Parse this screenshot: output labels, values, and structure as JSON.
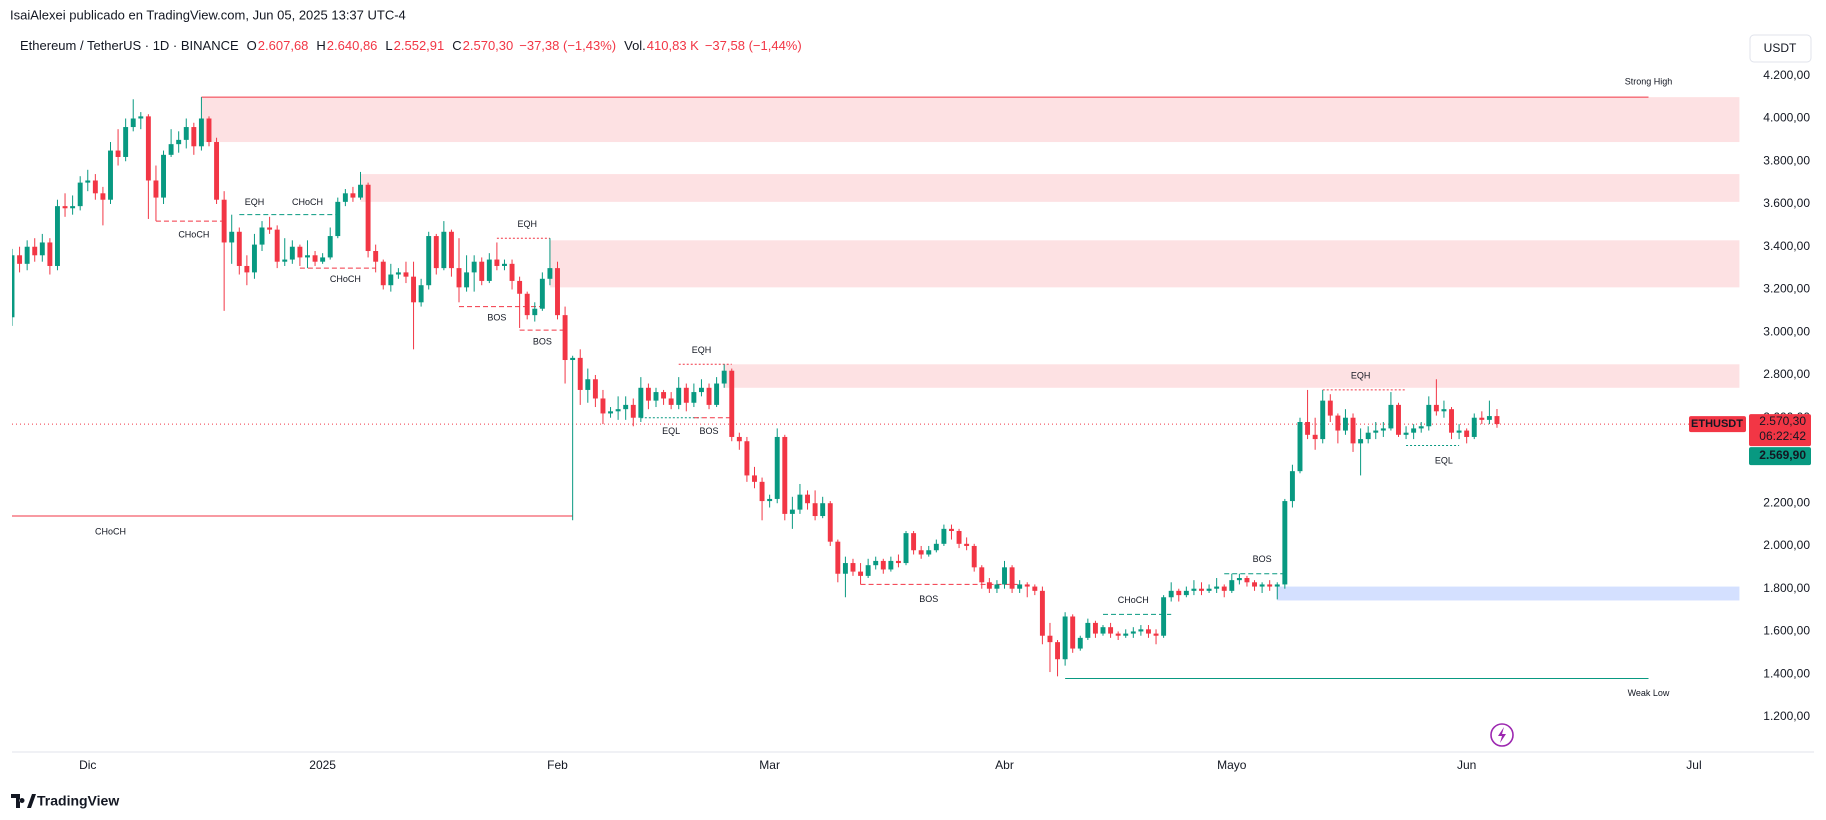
{
  "chart_data": {
    "type": "candlestick",
    "header": {
      "author_line": "IsaiAlexei publicado en TradingView.com, Jun 05, 2025 13:37 UTC-4",
      "symbol": "Ethereum / TetherUS · 1D · BINANCE",
      "ohlc": [
        {
          "key": "O",
          "value": "2.607,68"
        },
        {
          "key": "H",
          "value": "2.640,86"
        },
        {
          "key": "L",
          "value": "2.552,91"
        },
        {
          "key": "C",
          "value": "2.570,30"
        }
      ],
      "change": "−37,38 (−1,43%)",
      "volume_key": "Vol.",
      "volume": "410,83 K",
      "volume_change": "−37,58 (−1,44%)",
      "currency": "USDT"
    },
    "up_color": "#089981",
    "down_color": "#f23645",
    "grid": false,
    "xlim": [
      0,
      229
    ],
    "xticks": [
      {
        "value": 10,
        "label": "Dic"
      },
      {
        "value": 41,
        "label": "2025"
      },
      {
        "value": 72,
        "label": "Feb"
      },
      {
        "value": 100,
        "label": "Mar"
      },
      {
        "value": 131,
        "label": "Abr"
      },
      {
        "value": 161,
        "label": "Mayo"
      },
      {
        "value": 192,
        "label": "Jun"
      },
      {
        "value": 222,
        "label": "Jul"
      }
    ],
    "ylim": [
      1050,
      4255
    ],
    "yticks": [
      {
        "value": 1200,
        "label": "1.200,00"
      },
      {
        "value": 1400,
        "label": "1.400,00"
      },
      {
        "value": 1600,
        "label": "1.600,00"
      },
      {
        "value": 1800,
        "label": "1.800,00"
      },
      {
        "value": 2000,
        "label": "2.000,00"
      },
      {
        "value": 2200,
        "label": "2.200,00"
      },
      {
        "value": 2400,
        "label": "2.400,00"
      },
      {
        "value": 2600,
        "label": "2.600,00"
      },
      {
        "value": 2800,
        "label": "2.800,00"
      },
      {
        "value": 3000,
        "label": "3.000,00"
      },
      {
        "value": 3200,
        "label": "3.200,00"
      },
      {
        "value": 3400,
        "label": "3.400,00"
      },
      {
        "value": 3600,
        "label": "3.600,00"
      },
      {
        "value": 3800,
        "label": "3.800,00"
      },
      {
        "value": 4000,
        "label": "4.000,00"
      },
      {
        "value": 4200,
        "label": "4.200,00"
      }
    ],
    "open": [
      3070,
      3360,
      3320,
      3400,
      3360,
      3420,
      3310,
      3590,
      3580,
      3590,
      3700,
      3710,
      3650,
      3620,
      3850,
      3820,
      3960,
      4000,
      4010,
      3710,
      3630,
      3830,
      3880,
      3900,
      3960,
      3870,
      4000,
      3890,
      3620,
      3420,
      3470,
      3310,
      3280,
      3410,
      3490,
      3480,
      3330,
      3340,
      3400,
      3350,
      3360,
      3330,
      3350,
      3450,
      3610,
      3650,
      3630,
      3690,
      3380,
      3330,
      3220,
      3270,
      3280,
      3260,
      3140,
      3220,
      3450,
      3300,
      3470,
      3300,
      3210,
      3280,
      3330,
      3240,
      3340,
      3310,
      3320,
      3240,
      3180,
      3080,
      3110,
      3250,
      3300,
      3080,
      2870,
      2880,
      2730,
      2780,
      2690,
      2620,
      2630,
      2640,
      2660,
      2600,
      2740,
      2680,
      2720,
      2690,
      2660,
      2740,
      2670,
      2720,
      2740,
      2660,
      2760,
      2820,
      2510,
      2490,
      2330,
      2300,
      2210,
      2220,
      2510,
      2150,
      2170,
      2240,
      2200,
      2140,
      2200,
      2020,
      1870,
      1920,
      1880,
      1860,
      1910,
      1930,
      1890,
      1930,
      1920,
      2060,
      1980,
      1960,
      1980,
      2010,
      2080,
      2070,
      2010,
      2000,
      1900,
      1830,
      1800,
      1820,
      1900,
      1800,
      1820,
      1810,
      1790,
      1580,
      1550,
      1470,
      1670,
      1520,
      1570,
      1640,
      1590,
      1620,
      1590,
      1580,
      1590,
      1600,
      1610,
      1590,
      1580,
      1760,
      1790,
      1770,
      1790,
      1800,
      1790,
      1800,
      1810,
      1790,
      1840,
      1850,
      1830,
      1810,
      1820,
      1810,
      1820,
      2210,
      2350,
      2580,
      2520,
      2500,
      2680,
      2610,
      2540,
      2600,
      2480,
      2500,
      2530,
      2540,
      2550,
      2660,
      2520,
      2530,
      2550,
      2560,
      2660,
      2630,
      2640,
      2530,
      2540,
      2510,
      2600,
      2590,
      2607.68
    ],
    "high": [
      3390,
      3400,
      3430,
      3440,
      3460,
      3440,
      3620,
      3650,
      3640,
      3730,
      3760,
      3740,
      3680,
      3890,
      3950,
      4000,
      4090,
      4030,
      4020,
      3780,
      3850,
      3950,
      3940,
      4000,
      3980,
      4100,
      4010,
      3910,
      3660,
      3550,
      3490,
      3360,
      3460,
      3520,
      3540,
      3500,
      3440,
      3430,
      3410,
      3430,
      3380,
      3370,
      3490,
      3630,
      3670,
      3680,
      3750,
      3700,
      3410,
      3340,
      3320,
      3300,
      3330,
      3330,
      3250,
      3470,
      3460,
      3520,
      3480,
      3440,
      3360,
      3360,
      3350,
      3370,
      3420,
      3340,
      3340,
      3260,
      3190,
      3140,
      3280,
      3440,
      3330,
      3120,
      2890,
      2920,
      2830,
      2800,
      2730,
      2650,
      2700,
      2700,
      2690,
      2790,
      2760,
      2740,
      2730,
      2720,
      2790,
      2760,
      2760,
      2780,
      2760,
      2790,
      2850,
      2830,
      2530,
      2510,
      2370,
      2320,
      2240,
      2550,
      2520,
      2230,
      2290,
      2260,
      2260,
      2230,
      2210,
      2030,
      1950,
      1940,
      1920,
      1940,
      1950,
      1940,
      1950,
      1960,
      2070,
      2070,
      2000,
      2000,
      2030,
      2100,
      2100,
      2080,
      2040,
      2010,
      1910,
      1850,
      1840,
      1930,
      1910,
      1840,
      1830,
      1820,
      1810,
      1640,
      1560,
      1690,
      1680,
      1580,
      1660,
      1650,
      1630,
      1640,
      1600,
      1610,
      1620,
      1630,
      1630,
      1610,
      1770,
      1830,
      1800,
      1810,
      1840,
      1830,
      1820,
      1850,
      1820,
      1870,
      1870,
      1860,
      1840,
      1830,
      1840,
      1830,
      2220,
      2380,
      2600,
      2730,
      2600,
      2730,
      2710,
      2620,
      2640,
      2620,
      2550,
      2560,
      2580,
      2580,
      2720,
      2670,
      2560,
      2570,
      2580,
      2700,
      2780,
      2680,
      2650,
      2570,
      2550,
      2620,
      2630,
      2680,
      2640.86
    ],
    "low": [
      3030,
      3280,
      3290,
      3330,
      3330,
      3270,
      3290,
      3540,
      3550,
      3570,
      3660,
      3620,
      3500,
      3600,
      3780,
      3800,
      3940,
      3950,
      3530,
      3520,
      3600,
      3820,
      3840,
      3860,
      3830,
      3850,
      3870,
      3600,
      3100,
      3320,
      3270,
      3220,
      3250,
      3380,
      3460,
      3300,
      3310,
      3320,
      3310,
      3300,
      3310,
      3320,
      3340,
      3440,
      3590,
      3610,
      3620,
      3350,
      3280,
      3200,
      3190,
      3250,
      3230,
      2920,
      3120,
      3200,
      3270,
      3290,
      3260,
      3140,
      3190,
      3190,
      3220,
      3230,
      3290,
      3290,
      3200,
      3020,
      3060,
      3050,
      3100,
      3220,
      3060,
      2760,
      2120,
      2660,
      2670,
      2650,
      2570,
      2600,
      2590,
      2590,
      2560,
      2580,
      2640,
      2650,
      2660,
      2640,
      2640,
      2630,
      2650,
      2700,
      2640,
      2650,
      2740,
      2490,
      2450,
      2300,
      2270,
      2120,
      2180,
      2200,
      2120,
      2080,
      2150,
      2170,
      2120,
      2130,
      2000,
      1830,
      1760,
      1860,
      1820,
      1850,
      1890,
      1870,
      1880,
      1900,
      1910,
      1960,
      1940,
      1950,
      1970,
      2000,
      2030,
      1990,
      1980,
      1880,
      1800,
      1780,
      1780,
      1800,
      1780,
      1780,
      1760,
      1770,
      1540,
      1410,
      1390,
      1440,
      1500,
      1510,
      1560,
      1570,
      1580,
      1570,
      1560,
      1570,
      1570,
      1580,
      1570,
      1540,
      1570,
      1740,
      1740,
      1760,
      1770,
      1770,
      1780,
      1780,
      1760,
      1780,
      1820,
      1810,
      1790,
      1780,
      1790,
      1750,
      1800,
      2180,
      2340,
      2500,
      2450,
      2480,
      2580,
      2480,
      2520,
      2440,
      2330,
      2480,
      2500,
      2510,
      2540,
      2510,
      2500,
      2500,
      2530,
      2540,
      2610,
      2600,
      2500,
      2500,
      2480,
      2500,
      2570,
      2570,
      2552.91
    ],
    "close": [
      3360,
      3320,
      3400,
      3360,
      3420,
      3310,
      3590,
      3580,
      3590,
      3700,
      3710,
      3650,
      3620,
      3850,
      3820,
      3960,
      4000,
      4010,
      3710,
      3630,
      3830,
      3880,
      3900,
      3960,
      3870,
      4000,
      3890,
      3620,
      3420,
      3470,
      3310,
      3280,
      3410,
      3490,
      3480,
      3330,
      3340,
      3400,
      3350,
      3360,
      3330,
      3350,
      3450,
      3610,
      3650,
      3630,
      3690,
      3380,
      3330,
      3220,
      3270,
      3280,
      3260,
      3140,
      3220,
      3450,
      3300,
      3470,
      3300,
      3210,
      3280,
      3330,
      3240,
      3340,
      3310,
      3320,
      3240,
      3180,
      3080,
      3110,
      3250,
      3300,
      3080,
      2870,
      2880,
      2730,
      2780,
      2690,
      2620,
      2630,
      2640,
      2660,
      2600,
      2740,
      2680,
      2720,
      2690,
      2660,
      2740,
      2670,
      2720,
      2740,
      2660,
      2760,
      2820,
      2510,
      2490,
      2330,
      2300,
      2210,
      2220,
      2510,
      2150,
      2170,
      2240,
      2200,
      2140,
      2200,
      2020,
      1870,
      1920,
      1880,
      1860,
      1910,
      1930,
      1890,
      1930,
      1920,
      2060,
      1980,
      1960,
      1980,
      2010,
      2080,
      2070,
      2010,
      2000,
      1900,
      1830,
      1800,
      1820,
      1900,
      1800,
      1820,
      1810,
      1790,
      1580,
      1550,
      1470,
      1670,
      1520,
      1570,
      1640,
      1590,
      1620,
      1590,
      1580,
      1590,
      1600,
      1610,
      1590,
      1580,
      1760,
      1790,
      1770,
      1790,
      1800,
      1790,
      1800,
      1810,
      1790,
      1840,
      1850,
      1830,
      1810,
      1820,
      1810,
      1820,
      2210,
      2350,
      2580,
      2520,
      2500,
      2680,
      2610,
      2540,
      2600,
      2480,
      2500,
      2530,
      2540,
      2550,
      2660,
      2520,
      2530,
      2550,
      2560,
      2660,
      2630,
      2640,
      2530,
      2540,
      2510,
      2600,
      2590,
      2607.68,
      2570.3
    ],
    "zones": [
      {
        "top": 4100,
        "bottom": 3890,
        "from": 25,
        "to": 228,
        "color": "rgba(242,54,69,0.15)"
      },
      {
        "top": 3740,
        "bottom": 3610,
        "from": 46,
        "to": 228,
        "color": "rgba(242,54,69,0.15)"
      },
      {
        "top": 3430,
        "bottom": 3210,
        "from": 71,
        "to": 228,
        "color": "rgba(242,54,69,0.15)"
      },
      {
        "top": 2850,
        "bottom": 2740,
        "from": 94,
        "to": 228,
        "color": "rgba(242,54,69,0.15)"
      },
      {
        "top": 1810,
        "bottom": 1745,
        "from": 167,
        "to": 228,
        "color": "rgba(41,98,255,0.2)"
      }
    ],
    "levels": [
      {
        "price": 4100,
        "from": 25,
        "to": 216,
        "color": "#f23645",
        "dash": "solid"
      },
      {
        "price": 2140,
        "from": 0,
        "to": 74,
        "color": "#f23645",
        "dash": "solid"
      },
      {
        "price": 1380,
        "from": 139,
        "to": 216,
        "color": "#089981",
        "dash": "solid"
      },
      {
        "price": 3520,
        "from": 19,
        "to": 28,
        "color": "#f23645",
        "dash": "dashed"
      },
      {
        "price": 3550,
        "from": 30,
        "to": 43,
        "color": "#089981",
        "dash": "dashed"
      },
      {
        "price": 3300,
        "from": 38,
        "to": 48,
        "color": "#f23645",
        "dash": "dashed"
      },
      {
        "price": 3120,
        "from": 59,
        "to": 70,
        "color": "#f23645",
        "dash": "dashed"
      },
      {
        "price": 3010,
        "from": 67,
        "to": 73,
        "color": "#f23645",
        "dash": "dashed"
      },
      {
        "price": 3440,
        "from": 64,
        "to": 71,
        "color": "#f23645",
        "dash": "dotted"
      },
      {
        "price": 2850,
        "from": 88,
        "to": 95,
        "color": "#f23645",
        "dash": "dotted"
      },
      {
        "price": 2600,
        "from": 83,
        "to": 91,
        "color": "#089981",
        "dash": "dotted"
      },
      {
        "price": 2600,
        "from": 90,
        "to": 95,
        "color": "#f23645",
        "dash": "dashed"
      },
      {
        "price": 1820,
        "from": 112,
        "to": 133,
        "color": "#f23645",
        "dash": "dashed"
      },
      {
        "price": 1680,
        "from": 144,
        "to": 153,
        "color": "#089981",
        "dash": "dashed"
      },
      {
        "price": 1870,
        "from": 160,
        "to": 168,
        "color": "#089981",
        "dash": "dashed"
      },
      {
        "price": 2730,
        "from": 173,
        "to": 184,
        "color": "#f23645",
        "dash": "dotted"
      },
      {
        "price": 2470,
        "from": 184,
        "to": 191,
        "color": "#089981",
        "dash": "dotted"
      }
    ],
    "labels": [
      {
        "text": "Strong High",
        "x": 216,
        "y": 4170,
        "color": "#f23645"
      },
      {
        "text": "Weak Low",
        "x": 216,
        "y": 1310,
        "color": "#089981"
      },
      {
        "text": "CHoCH",
        "x": 13,
        "y": 2065,
        "color": "#f23645"
      },
      {
        "text": "EQH",
        "x": 32,
        "y": 3607,
        "color": "#f23645"
      },
      {
        "text": "CHoCH",
        "x": 39,
        "y": 3607,
        "color": "#089981"
      },
      {
        "text": "CHoCH",
        "x": 24,
        "y": 3455,
        "color": "#f23645"
      },
      {
        "text": "CHoCH",
        "x": 44,
        "y": 3247,
        "color": "#f23645"
      },
      {
        "text": "EQH",
        "x": 68,
        "y": 3503,
        "color": "#f23645"
      },
      {
        "text": "BOS",
        "x": 64,
        "y": 3067,
        "color": "#f23645"
      },
      {
        "text": "BOS",
        "x": 70,
        "y": 2953,
        "color": "#f23645"
      },
      {
        "text": "EQH",
        "x": 91,
        "y": 2915,
        "color": "#f23645"
      },
      {
        "text": "EQL",
        "x": 87,
        "y": 2534,
        "color": "#089981"
      },
      {
        "text": "BOS",
        "x": 92,
        "y": 2534,
        "color": "#f23645"
      },
      {
        "text": "BOS",
        "x": 121,
        "y": 1750,
        "color": "#f23645"
      },
      {
        "text": "CHoCH",
        "x": 148,
        "y": 1744,
        "color": "#089981"
      },
      {
        "text": "BOS",
        "x": 165,
        "y": 1935,
        "color": "#089981"
      },
      {
        "text": "EQH",
        "x": 178,
        "y": 2795,
        "color": "#f23645"
      },
      {
        "text": "EQL",
        "x": 189,
        "y": 2398,
        "color": "#089981"
      }
    ],
    "last_price": {
      "value": 2570.3,
      "label": "2.570,30"
    },
    "symbol_tag": "ETHUSDT",
    "countdown": "06:22:42",
    "second_price": "2.569,90",
    "brand": "TradingView"
  }
}
